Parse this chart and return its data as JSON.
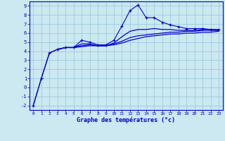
{
  "xlabel": "Graphe des températures (°c)",
  "background_color": "#cce8f0",
  "line_color": "#0000cc",
  "grid_color": "#99ccdd",
  "xlim": [
    -0.5,
    23.5
  ],
  "ylim": [
    -2.5,
    9.5
  ],
  "yticks": [
    -2,
    -1,
    0,
    1,
    2,
    3,
    4,
    5,
    6,
    7,
    8,
    9
  ],
  "xticks": [
    0,
    1,
    2,
    3,
    4,
    5,
    6,
    7,
    8,
    9,
    10,
    11,
    12,
    13,
    14,
    15,
    16,
    17,
    18,
    19,
    20,
    21,
    22,
    23
  ],
  "series": [
    {
      "x": [
        0,
        1,
        2,
        3,
        4,
        5,
        6,
        7,
        8,
        9,
        10,
        11,
        12,
        13,
        14,
        15,
        16,
        17,
        18,
        19,
        20,
        21,
        22,
        23
      ],
      "y": [
        -2.0,
        1.0,
        3.8,
        4.2,
        4.4,
        4.4,
        5.2,
        5.0,
        4.7,
        4.7,
        5.2,
        6.8,
        8.5,
        9.1,
        7.7,
        7.7,
        7.2,
        6.9,
        6.7,
        6.5,
        6.5,
        6.5,
        6.4,
        6.4
      ],
      "marker": true
    },
    {
      "x": [
        0,
        1,
        2,
        3,
        4,
        5,
        6,
        7,
        8,
        9,
        10,
        11,
        12,
        13,
        14,
        15,
        16,
        17,
        18,
        19,
        20,
        21,
        22,
        23
      ],
      "y": [
        -2.0,
        1.0,
        3.8,
        4.2,
        4.4,
        4.4,
        4.8,
        4.8,
        4.6,
        4.6,
        4.9,
        5.6,
        6.2,
        6.4,
        6.4,
        6.5,
        6.4,
        6.4,
        6.3,
        6.3,
        6.3,
        6.4,
        6.4,
        6.3
      ],
      "marker": false
    },
    {
      "x": [
        3,
        4,
        5,
        6,
        7,
        8,
        9,
        10,
        11,
        12,
        13,
        14,
        15,
        16,
        17,
        18,
        19,
        20,
        21,
        22,
        23
      ],
      "y": [
        4.2,
        4.4,
        4.4,
        4.6,
        4.7,
        4.6,
        4.6,
        4.8,
        5.1,
        5.5,
        5.7,
        5.8,
        5.9,
        6.0,
        6.1,
        6.1,
        6.2,
        6.2,
        6.3,
        6.3,
        6.3
      ],
      "marker": false
    },
    {
      "x": [
        3,
        4,
        5,
        6,
        7,
        8,
        9,
        10,
        11,
        12,
        13,
        14,
        15,
        16,
        17,
        18,
        19,
        20,
        21,
        22,
        23
      ],
      "y": [
        4.2,
        4.4,
        4.4,
        4.5,
        4.6,
        4.6,
        4.6,
        4.7,
        4.9,
        5.2,
        5.4,
        5.6,
        5.7,
        5.8,
        5.9,
        5.9,
        6.0,
        6.0,
        6.1,
        6.1,
        6.2
      ],
      "marker": false
    }
  ]
}
